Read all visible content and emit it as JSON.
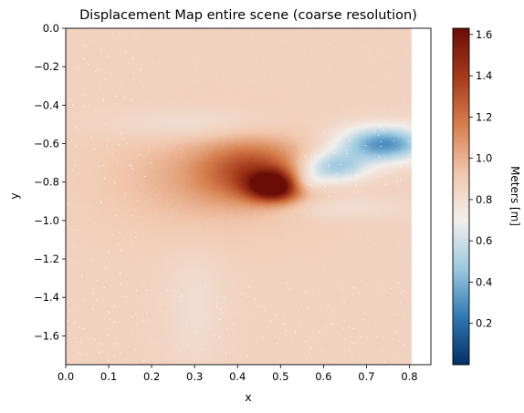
{
  "chart_data": {
    "type": "heatmap",
    "title": "Displacement Map entire scene (coarse resolution)",
    "xlabel": "x",
    "ylabel": "y",
    "xlim": [
      0.0,
      0.85
    ],
    "ylim": [
      -1.75,
      0.0
    ],
    "data_extent": {
      "x": [
        0.0,
        0.805
      ],
      "y": [
        -1.75,
        0.0
      ]
    },
    "x_ticks": [
      0.0,
      0.1,
      0.2,
      0.3,
      0.4,
      0.5,
      0.6,
      0.7,
      0.8
    ],
    "x_tick_labels": [
      "0.0",
      "0.1",
      "0.2",
      "0.3",
      "0.4",
      "0.5",
      "0.6",
      "0.7",
      "0.8"
    ],
    "y_ticks": [
      0.0,
      -0.2,
      -0.4,
      -0.6,
      -0.8,
      -1.0,
      -1.2,
      -1.4,
      -1.6
    ],
    "y_tick_labels": [
      "0.0",
      "−0.2",
      "−0.4",
      "−0.6",
      "−0.8",
      "−1.0",
      "−1.2",
      "−1.4",
      "−1.6"
    ],
    "grid": false,
    "colormap": "RdBu_r-like (blue low, white ~0.8, dark red high)",
    "colorbar": {
      "label": "Meters [m]",
      "range": [
        0.0,
        1.63
      ],
      "ticks": [
        0.2,
        0.4,
        0.6,
        0.8,
        1.0,
        1.2,
        1.4,
        1.6
      ],
      "tick_labels": [
        "0.2",
        "0.4",
        "0.6",
        "0.8",
        "1.0",
        "1.2",
        "1.4",
        "1.6"
      ],
      "colors": [
        "#052f66",
        "#2f79b4",
        "#9cc9e0",
        "#f2efed",
        "#f1c6ac",
        "#d67d4b",
        "#a5391b",
        "#6a0d07"
      ]
    },
    "background_value": 0.86,
    "features": [
      {
        "kind": "high",
        "x": 0.485,
        "y": -0.82,
        "value": 1.62,
        "sx": 0.06,
        "sy": 0.075
      },
      {
        "kind": "high",
        "x": 0.44,
        "y": -0.74,
        "value": 1.25,
        "sx": 0.12,
        "sy": 0.15
      },
      {
        "kind": "high",
        "x": 0.33,
        "y": -0.78,
        "value": 1.02,
        "sx": 0.22,
        "sy": 0.25
      },
      {
        "kind": "low",
        "x": 0.74,
        "y": -0.6,
        "value": 0.3,
        "sx": 0.1,
        "sy": 0.09
      },
      {
        "kind": "low",
        "x": 0.62,
        "y": -0.72,
        "value": 0.45,
        "sx": 0.08,
        "sy": 0.08
      },
      {
        "kind": "low",
        "x": 0.55,
        "y": -0.8,
        "value": 0.62,
        "sx": 0.05,
        "sy": 0.06
      },
      {
        "kind": "low",
        "x": 0.3,
        "y": -0.5,
        "value": 0.76,
        "sx": 0.18,
        "sy": 0.08
      },
      {
        "kind": "low",
        "x": 0.62,
        "y": -0.93,
        "value": 0.78,
        "sx": 0.16,
        "sy": 0.06
      },
      {
        "kind": "low",
        "x": 0.3,
        "y": -1.45,
        "value": 0.8,
        "sx": 0.07,
        "sy": 0.3
      }
    ]
  }
}
